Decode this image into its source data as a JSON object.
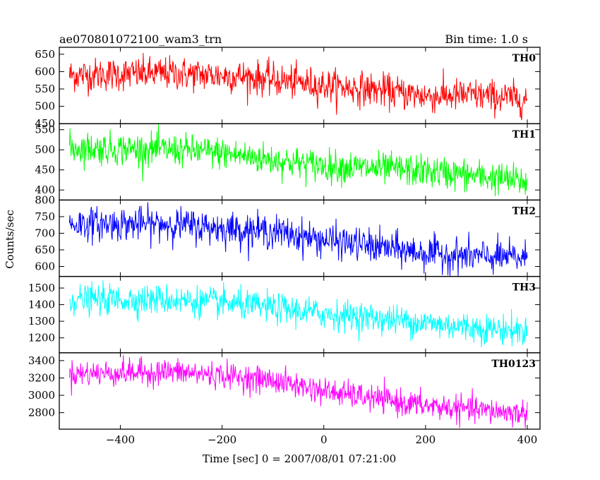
{
  "header": {
    "title": "ae070801072100_wam3_trn",
    "bin_time": "Bin time: 1.0 s"
  },
  "chart_data": {
    "type": "line",
    "xlabel": "Time [sec] 0 = 2007/08/01 07:21:00",
    "ylabel": "Counts/sec",
    "xlim": [
      -520,
      425
    ],
    "xticks": [
      -400,
      -200,
      0,
      200,
      400
    ],
    "x_range": [
      -500,
      400
    ],
    "bin_time_s": 1.0,
    "panels": [
      {
        "name": "TH0",
        "color": "#ff0000",
        "ylim": [
          450,
          670
        ],
        "yticks": [
          450,
          500,
          550,
          600,
          650
        ],
        "trend": [
          [
            -500,
            590
          ],
          [
            -300,
            595
          ],
          [
            -150,
            585
          ],
          [
            0,
            560
          ],
          [
            100,
            548
          ],
          [
            200,
            530
          ],
          [
            300,
            532
          ],
          [
            400,
            520
          ]
        ],
        "noise": 24
      },
      {
        "name": "TH1",
        "color": "#00ff00",
        "ylim": [
          375,
          565
        ],
        "yticks": [
          400,
          450,
          500,
          550
        ],
        "trend": [
          [
            -500,
            505
          ],
          [
            -300,
            500
          ],
          [
            -200,
            492
          ],
          [
            -100,
            475
          ],
          [
            0,
            460
          ],
          [
            200,
            447
          ],
          [
            300,
            435
          ],
          [
            400,
            420
          ]
        ],
        "noise": 20
      },
      {
        "name": "TH2",
        "color": "#0000ff",
        "ylim": [
          570,
          800
        ],
        "yticks": [
          600,
          650,
          700,
          750,
          800
        ],
        "trend": [
          [
            -500,
            728
          ],
          [
            -300,
            728
          ],
          [
            -200,
            715
          ],
          [
            -100,
            705
          ],
          [
            0,
            680
          ],
          [
            100,
            660
          ],
          [
            200,
            640
          ],
          [
            300,
            630
          ],
          [
            400,
            625
          ]
        ],
        "noise": 25
      },
      {
        "name": "TH3",
        "color": "#00ffff",
        "ylim": [
          1110,
          1570
        ],
        "yticks": [
          1200,
          1300,
          1400,
          1500
        ],
        "trend": [
          [
            -500,
            1430
          ],
          [
            -300,
            1430
          ],
          [
            -200,
            1410
          ],
          [
            -100,
            1380
          ],
          [
            0,
            1345
          ],
          [
            100,
            1320
          ],
          [
            200,
            1290
          ],
          [
            300,
            1260
          ],
          [
            400,
            1240
          ]
        ],
        "noise": 45
      },
      {
        "name": "TH0123",
        "color": "#ff00ff",
        "ylim": [
          2610,
          3490
        ],
        "yticks": [
          2800,
          3000,
          3200,
          3400
        ],
        "trend": [
          [
            -500,
            3250
          ],
          [
            -300,
            3270
          ],
          [
            -200,
            3230
          ],
          [
            -100,
            3170
          ],
          [
            0,
            3050
          ],
          [
            100,
            2960
          ],
          [
            200,
            2880
          ],
          [
            300,
            2830
          ],
          [
            400,
            2790
          ]
        ],
        "noise": 75
      }
    ]
  }
}
